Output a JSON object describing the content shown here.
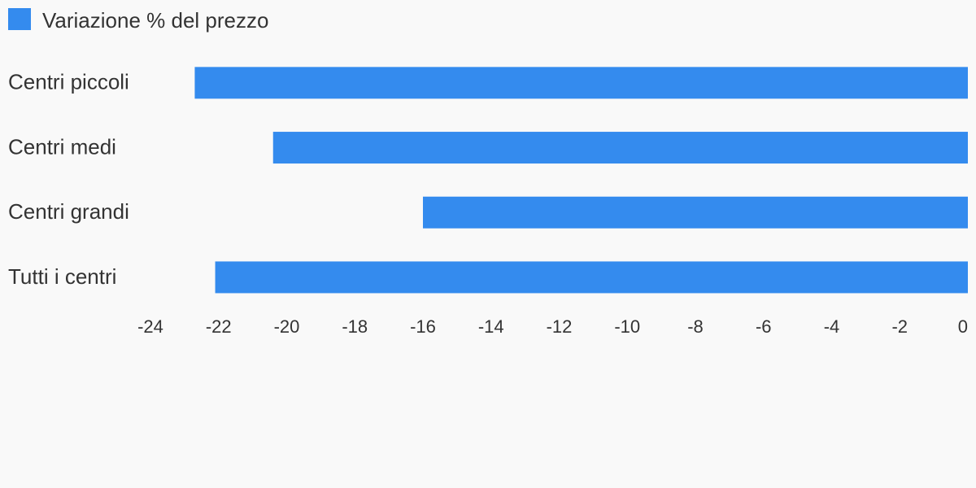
{
  "chart_data": {
    "type": "hbar",
    "categories": [
      "Centri piccoli",
      "Centri medi",
      "Centri grandi",
      "Tutti i centri"
    ],
    "series": [
      {
        "name": "Variazione % del prezzo",
        "color": "#348bee",
        "values": [
          -22.7,
          -20.4,
          -16.0,
          -22.1
        ]
      }
    ],
    "xlim": [
      -24,
      0
    ],
    "xticks": [
      -24,
      -22,
      -20,
      -18,
      -16,
      -14,
      -12,
      -10,
      -8,
      -6,
      -4,
      -2,
      0
    ],
    "legend": "top-left"
  }
}
